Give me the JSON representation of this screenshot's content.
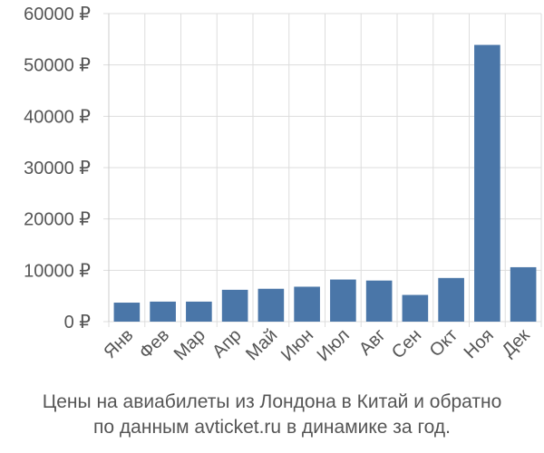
{
  "chart_data": {
    "type": "bar",
    "categories": [
      "Янв",
      "Фев",
      "Мар",
      "Апр",
      "Май",
      "Июн",
      "Июл",
      "Авг",
      "Сен",
      "Окт",
      "Ноя",
      "Дек"
    ],
    "values": [
      3700,
      3900,
      3900,
      6200,
      6400,
      6800,
      8200,
      8000,
      5200,
      8500,
      53900,
      10600
    ],
    "y_ticks": [
      "0 ₽",
      "10000 ₽",
      "20000 ₽",
      "30000 ₽",
      "40000 ₽",
      "50000 ₽",
      "60000 ₽"
    ],
    "ylim": [
      0,
      60000
    ],
    "grid": true,
    "bar_color": "#4a76a8",
    "grid_color": "#dddddd"
  },
  "caption": {
    "line1": "Цены на авиабилеты из Лондона в Китай и обратно",
    "line2": "по данным avticket.ru в динамике за год."
  }
}
